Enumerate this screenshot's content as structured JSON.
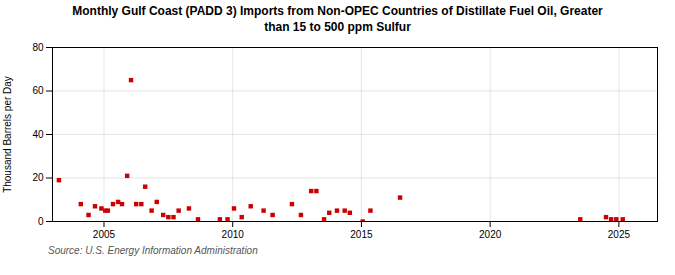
{
  "chart_data": {
    "type": "scatter",
    "title": "Monthly Gulf Coast (PADD 3) Imports from Non-OPEC Countries of Distillate Fuel Oil, Greater\nthan 15 to 500 ppm Sulfur",
    "y_label": "Thousand Barrels per Day",
    "annotations": [
      "Source: U.S. Energy Information Administration"
    ],
    "color": "#cc0000",
    "marker": "square",
    "grid": true,
    "xlim": [
      2003.0,
      2026.5
    ],
    "ylim": [
      0,
      80
    ],
    "xticks": [
      2005,
      2010,
      2015,
      2020,
      2025
    ],
    "yticks": [
      0,
      20,
      40,
      60,
      80
    ],
    "x": [
      2003.25,
      2004.1,
      2004.4,
      2004.65,
      2004.9,
      2005.05,
      2005.15,
      2005.35,
      2005.55,
      2005.7,
      2005.9,
      2006.05,
      2006.25,
      2006.45,
      2006.6,
      2006.85,
      2007.05,
      2007.3,
      2007.5,
      2007.7,
      2007.9,
      2008.3,
      2008.65,
      2009.5,
      2009.8,
      2010.05,
      2010.35,
      2010.7,
      2011.2,
      2011.55,
      2012.3,
      2012.65,
      2013.05,
      2013.25,
      2013.55,
      2013.75,
      2014.05,
      2014.35,
      2014.55,
      2015.05,
      2015.35,
      2016.5,
      2023.5,
      2024.5,
      2024.7,
      2024.9,
      2025.15
    ],
    "values": [
      19,
      8,
      3,
      7,
      6,
      5,
      5,
      8,
      9,
      8,
      21,
      65,
      8,
      8,
      16,
      5,
      9,
      3,
      2,
      2,
      5,
      6,
      1,
      1,
      1,
      6,
      2,
      7,
      5,
      3,
      8,
      3,
      14,
      14,
      1,
      4,
      5,
      5,
      4,
      0,
      5,
      11,
      1,
      2,
      1,
      1,
      1
    ]
  }
}
